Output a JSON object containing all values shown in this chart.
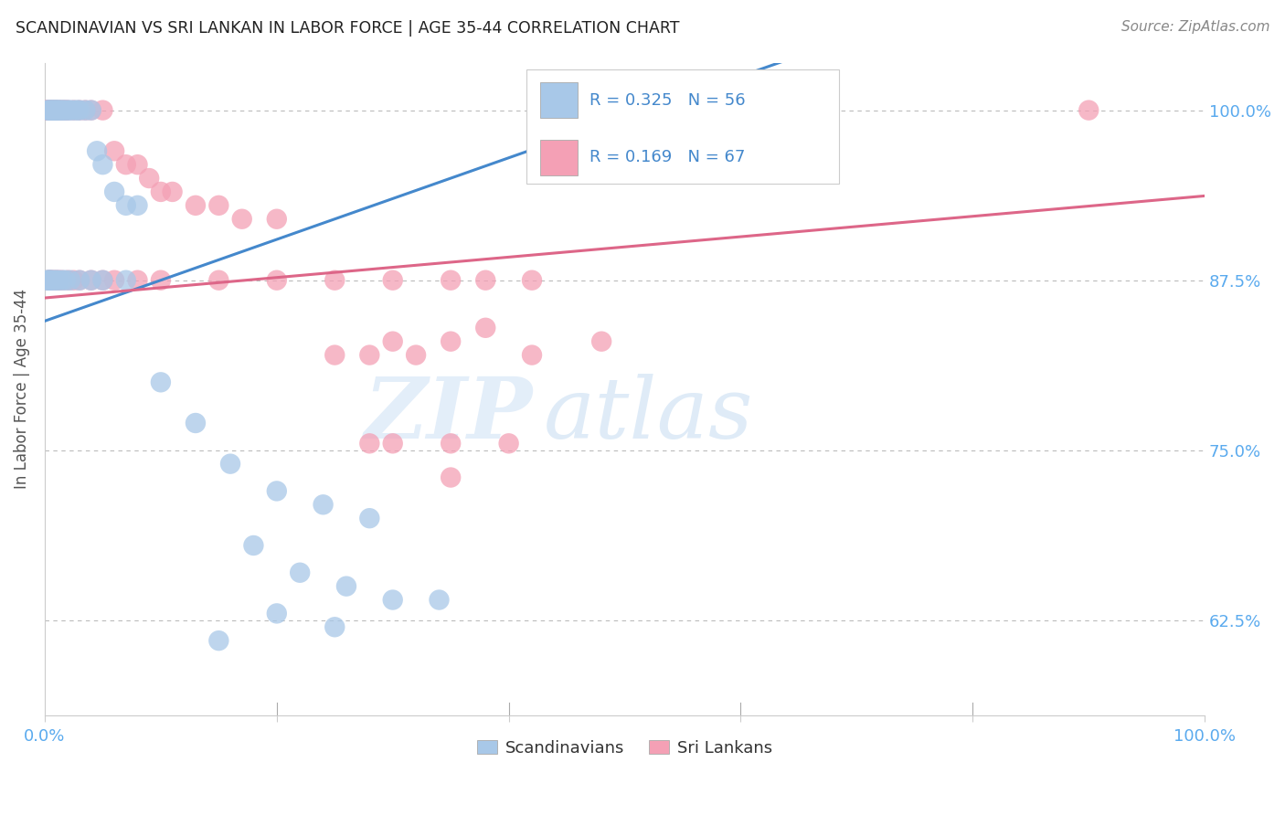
{
  "title": "SCANDINAVIAN VS SRI LANKAN IN LABOR FORCE | AGE 35-44 CORRELATION CHART",
  "source": "Source: ZipAtlas.com",
  "ylabel": "In Labor Force | Age 35-44",
  "xlim": [
    0.0,
    1.0
  ],
  "ylim_low": 0.555,
  "ylim_high": 1.035,
  "yticks": [
    0.625,
    0.75,
    0.875,
    1.0
  ],
  "ytick_labels": [
    "62.5%",
    "75.0%",
    "87.5%",
    "100.0%"
  ],
  "xticks": [
    0.0,
    0.2,
    0.4,
    0.6,
    0.8,
    1.0
  ],
  "xtick_labels": [
    "0.0%",
    "",
    "",
    "",
    "",
    "100.0%"
  ],
  "watermark_zip": "ZIP",
  "watermark_atlas": "atlas",
  "background_color": "#ffffff",
  "grid_color": "#bbbbbb",
  "axis_tick_color": "#5aaaee",
  "scandinavian_color": "#a8c8e8",
  "sri_lankan_color": "#f4a0b5",
  "blue_line_color": "#4488cc",
  "pink_line_color": "#dd6688",
  "R_scandinavian": 0.325,
  "N_scandinavian": 56,
  "R_sri_lankan": 0.169,
  "N_sri_lankan": 67,
  "legend_label_color": "#4488cc",
  "legend_R_sc": "R = 0.325",
  "legend_N_sc": "N = 56",
  "legend_R_sl": "R = 0.169",
  "legend_N_sl": "N = 67",
  "bottom_legend_sc": "Scandinavians",
  "bottom_legend_sl": "Sri Lankans",
  "sc_x": [
    0.002,
    0.003,
    0.004,
    0.005,
    0.006,
    0.007,
    0.008,
    0.009,
    0.01,
    0.011,
    0.012,
    0.013,
    0.015,
    0.016,
    0.018,
    0.02,
    0.022,
    0.025,
    0.028,
    0.03,
    0.035,
    0.04,
    0.045,
    0.05,
    0.06,
    0.07,
    0.08,
    0.002,
    0.003,
    0.004,
    0.005,
    0.006,
    0.008,
    0.01,
    0.012,
    0.015,
    0.018,
    0.022,
    0.03,
    0.04,
    0.05,
    0.07,
    0.1,
    0.13,
    0.16,
    0.2,
    0.24,
    0.28,
    0.18,
    0.22,
    0.26,
    0.3,
    0.34,
    0.2,
    0.25,
    0.15
  ],
  "sc_y": [
    1.0,
    1.0,
    1.0,
    1.0,
    1.0,
    1.0,
    1.0,
    1.0,
    1.0,
    1.0,
    1.0,
    1.0,
    1.0,
    1.0,
    1.0,
    1.0,
    1.0,
    1.0,
    1.0,
    1.0,
    1.0,
    1.0,
    0.97,
    0.96,
    0.94,
    0.93,
    0.93,
    0.875,
    0.875,
    0.875,
    0.875,
    0.875,
    0.875,
    0.875,
    0.875,
    0.875,
    0.875,
    0.875,
    0.875,
    0.875,
    0.875,
    0.875,
    0.8,
    0.77,
    0.74,
    0.72,
    0.71,
    0.7,
    0.68,
    0.66,
    0.65,
    0.64,
    0.64,
    0.63,
    0.62,
    0.61
  ],
  "sl_x": [
    0.001,
    0.002,
    0.003,
    0.004,
    0.005,
    0.006,
    0.007,
    0.008,
    0.009,
    0.01,
    0.012,
    0.014,
    0.016,
    0.018,
    0.02,
    0.025,
    0.03,
    0.035,
    0.04,
    0.05,
    0.06,
    0.07,
    0.08,
    0.09,
    0.1,
    0.11,
    0.13,
    0.15,
    0.17,
    0.2,
    0.003,
    0.004,
    0.005,
    0.006,
    0.008,
    0.01,
    0.012,
    0.015,
    0.02,
    0.025,
    0.03,
    0.04,
    0.05,
    0.06,
    0.08,
    0.1,
    0.15,
    0.2,
    0.25,
    0.3,
    0.35,
    0.38,
    0.42,
    0.3,
    0.38,
    0.28,
    0.9,
    0.25,
    0.32,
    0.35,
    0.42,
    0.48,
    0.4,
    0.35,
    0.3,
    0.35,
    0.28
  ],
  "sl_y": [
    1.0,
    1.0,
    1.0,
    1.0,
    1.0,
    1.0,
    1.0,
    1.0,
    1.0,
    1.0,
    1.0,
    1.0,
    1.0,
    1.0,
    1.0,
    1.0,
    1.0,
    1.0,
    1.0,
    1.0,
    0.97,
    0.96,
    0.96,
    0.95,
    0.94,
    0.94,
    0.93,
    0.93,
    0.92,
    0.92,
    0.875,
    0.875,
    0.875,
    0.875,
    0.875,
    0.875,
    0.875,
    0.875,
    0.875,
    0.875,
    0.875,
    0.875,
    0.875,
    0.875,
    0.875,
    0.875,
    0.875,
    0.875,
    0.875,
    0.875,
    0.875,
    0.875,
    0.875,
    0.83,
    0.84,
    0.82,
    1.0,
    0.82,
    0.82,
    0.83,
    0.82,
    0.83,
    0.755,
    0.755,
    0.755,
    0.73,
    0.755
  ]
}
